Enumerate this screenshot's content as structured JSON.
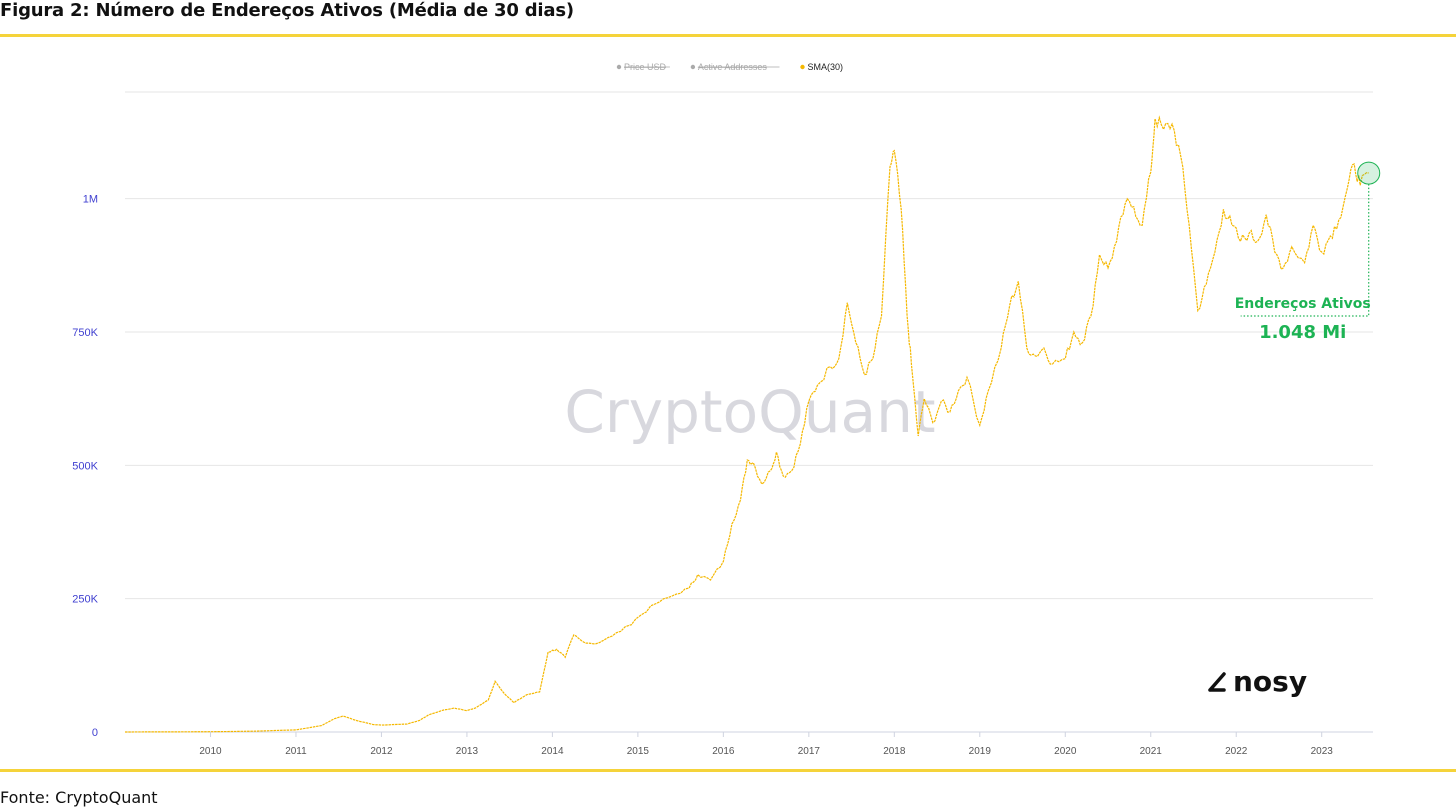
{
  "figure": {
    "title": "Figura 2: Número de Endereços Ativos (Média de 30 dias)",
    "source": "Fonte: CryptoQuant",
    "watermark": "CryptoQuant",
    "logo": "nosy",
    "accent_color": "#f5d33a"
  },
  "chart_data": {
    "type": "line",
    "title": "Figura 2: Número de Endereços Ativos (Média de 30 dias)",
    "xlabel": "",
    "ylabel": "",
    "legend": {
      "placement": "top-center",
      "items": [
        {
          "label": "Price USD",
          "active": false,
          "color": "#aaaaaa"
        },
        {
          "label": "Active Addresses",
          "active": false,
          "color": "#aaaaaa"
        },
        {
          "label": "SMA(30)",
          "active": true,
          "color": "#f5b800"
        }
      ]
    },
    "grid": true,
    "xlim": [
      2009.0,
      2023.6
    ],
    "ylim": [
      0,
      1200000
    ],
    "x_ticks": [
      "2010",
      "2011",
      "2012",
      "2013",
      "2014",
      "2015",
      "2016",
      "2017",
      "2018",
      "2019",
      "2020",
      "2021",
      "2022",
      "2023"
    ],
    "y_ticks": [
      {
        "value": 0,
        "label": "0"
      },
      {
        "value": 250000,
        "label": "250K"
      },
      {
        "value": 500000,
        "label": "500K"
      },
      {
        "value": 750000,
        "label": "750K"
      },
      {
        "value": 1000000,
        "label": "1M"
      }
    ],
    "series": [
      {
        "name": "SMA(30)",
        "color": "#f5b800",
        "points": [
          [
            2009.0,
            0
          ],
          [
            2010.0,
            500
          ],
          [
            2010.5,
            1500
          ],
          [
            2011.0,
            4000
          ],
          [
            2011.3,
            12000
          ],
          [
            2011.45,
            25000
          ],
          [
            2011.55,
            30000
          ],
          [
            2011.7,
            22000
          ],
          [
            2011.9,
            14000
          ],
          [
            2012.0,
            13000
          ],
          [
            2012.3,
            15000
          ],
          [
            2012.45,
            22000
          ],
          [
            2012.55,
            32000
          ],
          [
            2012.7,
            40000
          ],
          [
            2012.85,
            45000
          ],
          [
            2013.0,
            40000
          ],
          [
            2013.1,
            45000
          ],
          [
            2013.25,
            60000
          ],
          [
            2013.33,
            95000
          ],
          [
            2013.45,
            70000
          ],
          [
            2013.55,
            55000
          ],
          [
            2013.7,
            70000
          ],
          [
            2013.85,
            75000
          ],
          [
            2013.95,
            150000
          ],
          [
            2014.05,
            155000
          ],
          [
            2014.15,
            140000
          ],
          [
            2014.25,
            182000
          ],
          [
            2014.35,
            170000
          ],
          [
            2014.5,
            165000
          ],
          [
            2014.7,
            180000
          ],
          [
            2014.9,
            200000
          ],
          [
            2015.0,
            215000
          ],
          [
            2015.2,
            240000
          ],
          [
            2015.4,
            255000
          ],
          [
            2015.6,
            270000
          ],
          [
            2015.7,
            295000
          ],
          [
            2015.85,
            285000
          ],
          [
            2016.0,
            320000
          ],
          [
            2016.1,
            390000
          ],
          [
            2016.2,
            435000
          ],
          [
            2016.28,
            510000
          ],
          [
            2016.35,
            505000
          ],
          [
            2016.45,
            465000
          ],
          [
            2016.55,
            490000
          ],
          [
            2016.62,
            525000
          ],
          [
            2016.7,
            480000
          ],
          [
            2016.8,
            490000
          ],
          [
            2016.9,
            540000
          ],
          [
            2017.0,
            620000
          ],
          [
            2017.1,
            650000
          ],
          [
            2017.25,
            685000
          ],
          [
            2017.35,
            700000
          ],
          [
            2017.45,
            805000
          ],
          [
            2017.55,
            730000
          ],
          [
            2017.65,
            670000
          ],
          [
            2017.75,
            700000
          ],
          [
            2017.85,
            780000
          ],
          [
            2017.95,
            1060000
          ],
          [
            2018.0,
            1090000
          ],
          [
            2018.08,
            980000
          ],
          [
            2018.15,
            780000
          ],
          [
            2018.2,
            690000
          ],
          [
            2018.28,
            555000
          ],
          [
            2018.35,
            625000
          ],
          [
            2018.45,
            580000
          ],
          [
            2018.55,
            620000
          ],
          [
            2018.65,
            600000
          ],
          [
            2018.75,
            640000
          ],
          [
            2018.85,
            665000
          ],
          [
            2019.0,
            575000
          ],
          [
            2019.1,
            640000
          ],
          [
            2019.25,
            720000
          ],
          [
            2019.35,
            800000
          ],
          [
            2019.45,
            845000
          ],
          [
            2019.55,
            720000
          ],
          [
            2019.65,
            705000
          ],
          [
            2019.75,
            720000
          ],
          [
            2019.85,
            690000
          ],
          [
            2020.0,
            700000
          ],
          [
            2020.1,
            750000
          ],
          [
            2020.2,
            730000
          ],
          [
            2020.3,
            780000
          ],
          [
            2020.4,
            895000
          ],
          [
            2020.5,
            870000
          ],
          [
            2020.6,
            920000
          ],
          [
            2020.7,
            990000
          ],
          [
            2020.8,
            985000
          ],
          [
            2020.9,
            950000
          ],
          [
            2021.0,
            1050000
          ],
          [
            2021.05,
            1150000
          ],
          [
            2021.15,
            1130000
          ],
          [
            2021.25,
            1140000
          ],
          [
            2021.35,
            1080000
          ],
          [
            2021.45,
            950000
          ],
          [
            2021.55,
            790000
          ],
          [
            2021.65,
            840000
          ],
          [
            2021.75,
            900000
          ],
          [
            2021.85,
            980000
          ],
          [
            2021.95,
            950000
          ],
          [
            2022.05,
            920000
          ],
          [
            2022.15,
            935000
          ],
          [
            2022.25,
            920000
          ],
          [
            2022.35,
            970000
          ],
          [
            2022.45,
            900000
          ],
          [
            2022.55,
            870000
          ],
          [
            2022.65,
            910000
          ],
          [
            2022.8,
            880000
          ],
          [
            2022.9,
            950000
          ],
          [
            2023.0,
            900000
          ],
          [
            2023.1,
            930000
          ],
          [
            2023.2,
            960000
          ],
          [
            2023.3,
            1020000
          ],
          [
            2023.38,
            1065000
          ],
          [
            2023.45,
            1025000
          ],
          [
            2023.55,
            1048000
          ]
        ]
      }
    ],
    "annotation": {
      "label": "Endereços Ativos",
      "value_label": "1.048 Mi",
      "value": 1048000,
      "color": "#1db354"
    }
  }
}
